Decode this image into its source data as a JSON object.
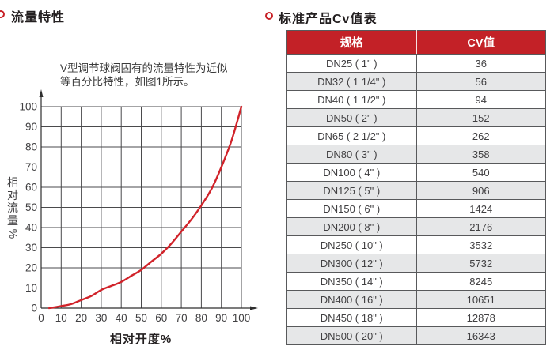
{
  "left_section": {
    "title": "流量特性",
    "annotation_line1": "V型调节球阀固有的流量特性为近似",
    "annotation_line2": "等百分比特性，如图1所示。"
  },
  "right_section": {
    "title": "标准产品Cv值表"
  },
  "chart_data": {
    "type": "line",
    "title": "",
    "xlabel": "相对开度%",
    "ylabel": "相对流量%",
    "xlim": [
      0,
      100
    ],
    "ylim": [
      0,
      100
    ],
    "x_ticks": [
      0,
      10,
      20,
      30,
      40,
      50,
      60,
      70,
      80,
      90,
      100
    ],
    "y_ticks": [
      0,
      10,
      20,
      30,
      40,
      50,
      60,
      70,
      80,
      90,
      100
    ],
    "grid": true,
    "legend": "none",
    "series": [
      {
        "name": "equal-percentage-flow-characteristic",
        "color": "#d1232a",
        "x": [
          4,
          10,
          15,
          20,
          25,
          30,
          35,
          40,
          45,
          50,
          55,
          60,
          65,
          70,
          75,
          80,
          85,
          90,
          95,
          100
        ],
        "y": [
          0,
          1,
          2,
          4,
          6,
          9,
          11,
          13,
          16,
          19,
          23,
          27,
          32,
          38,
          44,
          51,
          59,
          70,
          83,
          100
        ]
      }
    ]
  },
  "table": {
    "headers": [
      "规格",
      "CV值"
    ],
    "rows": [
      [
        "DN25 ( 1\" )",
        "36"
      ],
      [
        "DN32 ( 1 1/4\" )",
        "56"
      ],
      [
        "DN40 ( 1 1/2\" )",
        "94"
      ],
      [
        "DN50 ( 2\" )",
        "152"
      ],
      [
        "DN65 ( 2 1/2\" )",
        "262"
      ],
      [
        "DN80 ( 3\" )",
        "358"
      ],
      [
        "DN100 ( 4\" )",
        "540"
      ],
      [
        "DN125 ( 5\" )",
        "906"
      ],
      [
        "DN150 ( 6\" )",
        "1424"
      ],
      [
        "DN200 ( 8\" )",
        "2176"
      ],
      [
        "DN250 ( 10\" )",
        "3532"
      ],
      [
        "DN300 ( 12\" )",
        "5732"
      ],
      [
        "DN350 ( 14\" )",
        "8245"
      ],
      [
        "DN400 ( 16\" )",
        "10651"
      ],
      [
        "DN450 ( 18\" )",
        "12878"
      ],
      [
        "DN500 ( 20\" )",
        "16343"
      ]
    ]
  },
  "colors": {
    "accent_red": "#c32127",
    "curve_red": "#d1232a",
    "grid_line": "#4a4a4c",
    "table_border": "#58595b",
    "alt_row_bg": "#e6e7e8",
    "text_dark": "#414042"
  }
}
